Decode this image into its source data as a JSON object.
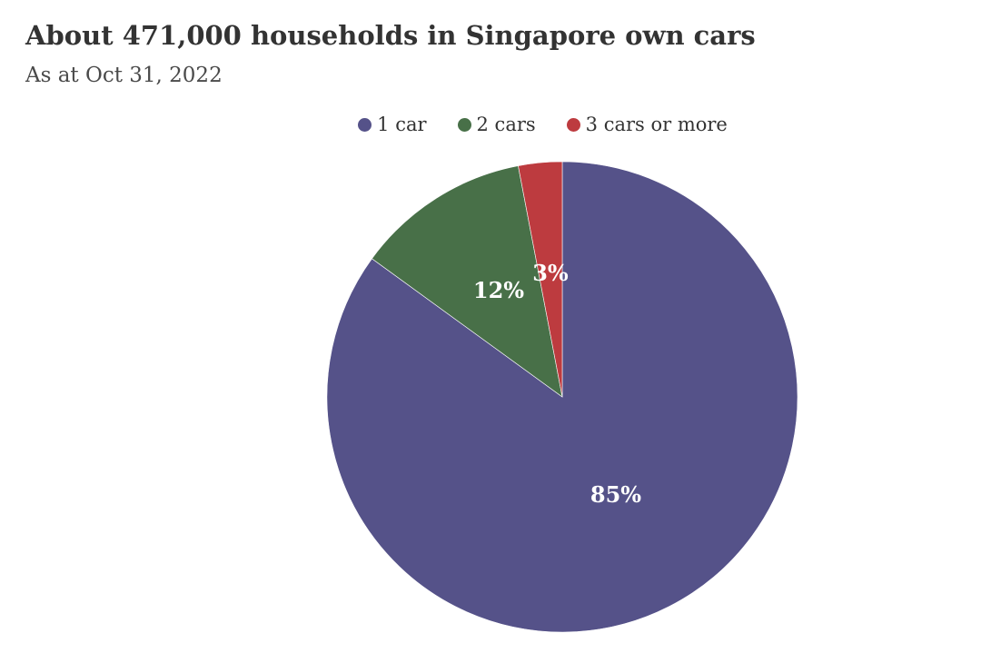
{
  "chart_data": {
    "type": "pie",
    "title": "About 471,000 households in Singapore own cars",
    "subtitle": "As at Oct 31, 2022",
    "legend_position": "top-center",
    "slices": [
      {
        "label": "1 car",
        "value": 85,
        "display": "85%",
        "color": "#555289"
      },
      {
        "label": "2 cars",
        "value": 12,
        "display": "12%",
        "color": "#487048"
      },
      {
        "label": "3 cars or more",
        "value": 3,
        "display": "3%",
        "color": "#bd3b3f"
      }
    ]
  }
}
